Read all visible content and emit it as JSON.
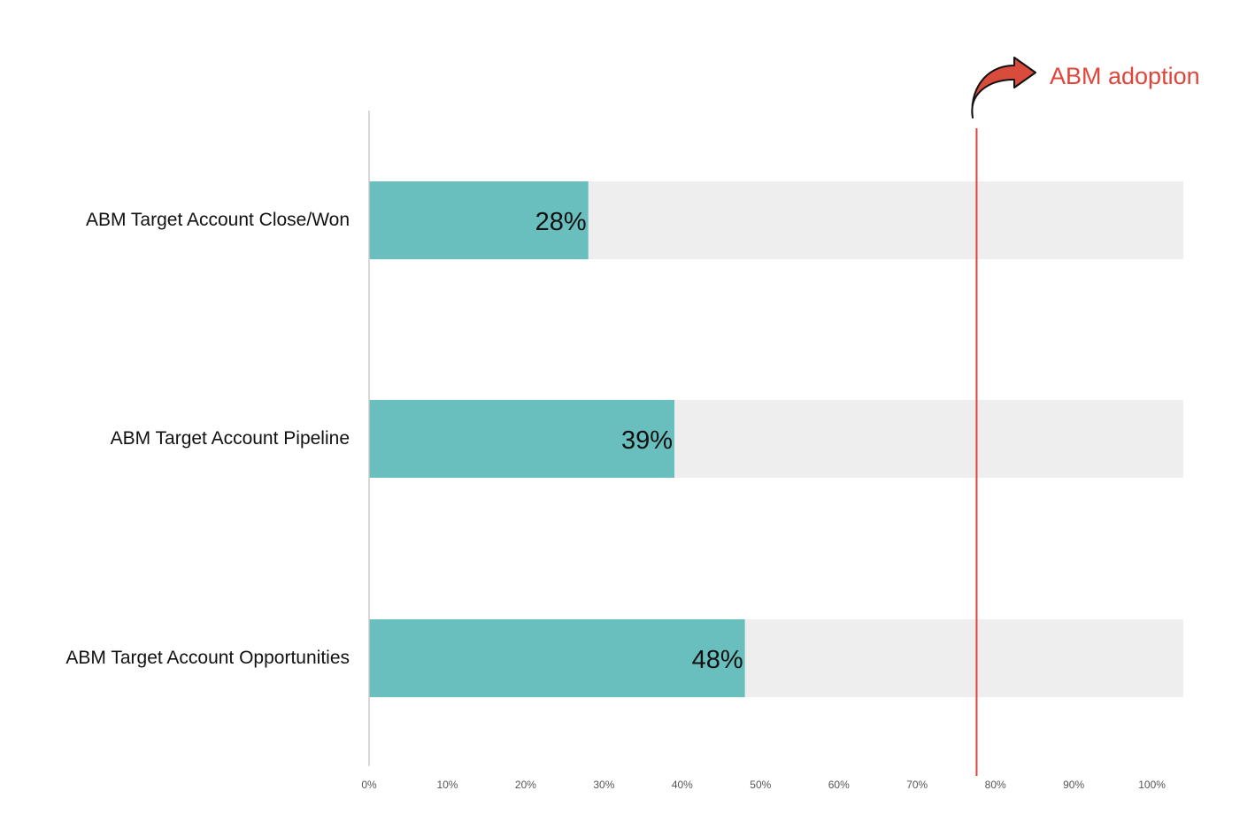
{
  "chart_data": {
    "type": "bar",
    "orientation": "horizontal",
    "categories": [
      "ABM Target Account Close/Won",
      "ABM Target Account Pipeline",
      "ABM Target Account Opportunities"
    ],
    "values": [
      28,
      39,
      48
    ],
    "value_labels": [
      "28%",
      "39%",
      "48%"
    ],
    "xlim": [
      0,
      104
    ],
    "x_ticks": [
      0,
      10,
      20,
      30,
      40,
      50,
      60,
      70,
      80,
      90,
      100
    ],
    "x_tick_labels": [
      "0%",
      "10%",
      "20%",
      "30%",
      "40%",
      "50%",
      "60%",
      "70%",
      "80%",
      "90%",
      "100%"
    ],
    "reference_line": {
      "value": 77.6,
      "label": "ABM adoption",
      "color": "#e0453a"
    },
    "grid": false,
    "legend": "none",
    "title": "",
    "xlabel": "",
    "ylabel": ""
  },
  "colors": {
    "bar_fill": "#69bebe",
    "track_fill": "#eeeeee",
    "axis": "#cccccc",
    "text": "#111111",
    "tick_text": "#555555",
    "annotation": "#e0453a",
    "arrow_fill": "#d94b3b",
    "arrow_outline": "#111111"
  }
}
